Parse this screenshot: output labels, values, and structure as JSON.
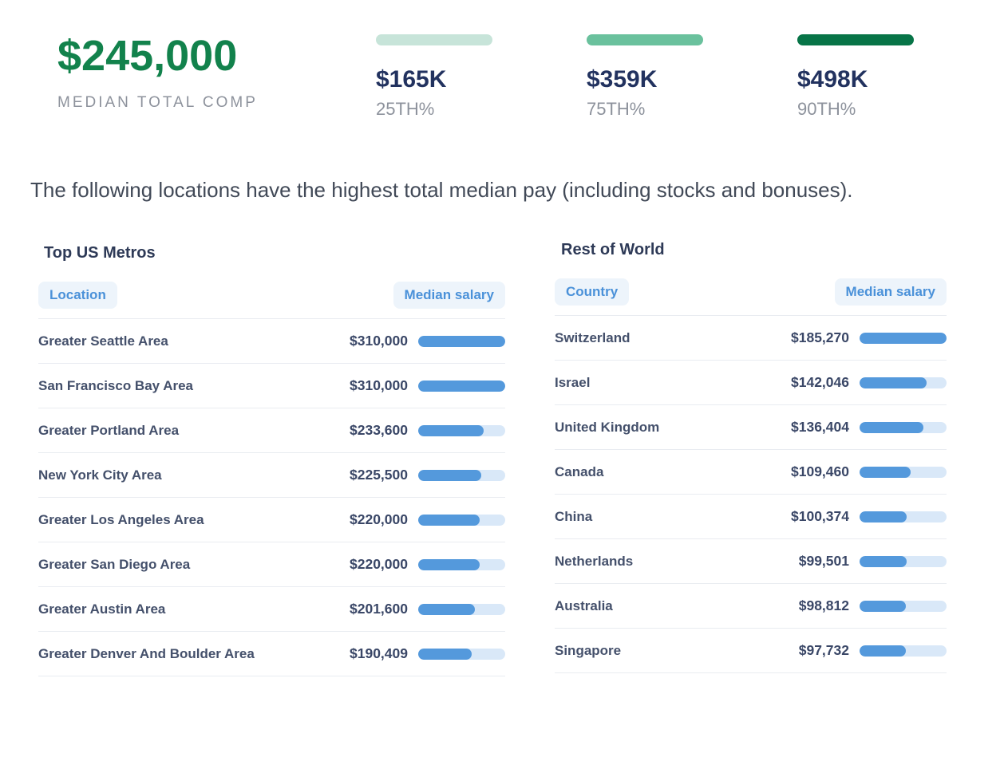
{
  "summary": {
    "median_total_comp": "$245,000",
    "median_total_comp_label": "MEDIAN TOTAL COMP",
    "percentiles": [
      {
        "value": "$165K",
        "label": "25TH%",
        "bar_color": "#c7e4d9"
      },
      {
        "value": "$359K",
        "label": "75TH%",
        "bar_color": "#6ac19d"
      },
      {
        "value": "$498K",
        "label": "90TH%",
        "bar_color": "#077447"
      }
    ]
  },
  "description": "The following locations have the highest total median pay (including stocks and bonuses).",
  "chart_data": [
    {
      "type": "bar",
      "title": "Top US Metros",
      "xlabel": "Location",
      "ylabel": "Median salary",
      "categories": [
        "Greater Seattle Area",
        "San Francisco Bay Area",
        "Greater Portland Area",
        "New York City Area",
        "Greater Los Angeles Area",
        "Greater San Diego Area",
        "Greater Austin Area",
        "Greater Denver And Boulder Area"
      ],
      "values": [
        310000,
        310000,
        233600,
        225500,
        220000,
        220000,
        201600,
        190409
      ],
      "value_labels": [
        "$310,000",
        "$310,000",
        "$233,600",
        "$225,500",
        "$220,000",
        "$220,000",
        "$201,600",
        "$190,409"
      ],
      "xlim": [
        0,
        310000
      ]
    },
    {
      "type": "bar",
      "title": "Rest of World",
      "xlabel": "Country",
      "ylabel": "Median salary",
      "categories": [
        "Switzerland",
        "Israel",
        "United Kingdom",
        "Canada",
        "China",
        "Netherlands",
        "Australia",
        "Singapore"
      ],
      "values": [
        185270,
        142046,
        136404,
        109460,
        100374,
        99501,
        98812,
        97732
      ],
      "value_labels": [
        "$185,270",
        "$142,046",
        "$136,404",
        "$109,460",
        "$100,374",
        "$99,501",
        "$98,812",
        "$97,732"
      ],
      "xlim": [
        0,
        185270
      ]
    }
  ],
  "tables": [
    {
      "title": "Top US Metros",
      "name_header": "Location",
      "value_header": "Median salary",
      "max_amount": 310000,
      "rows": [
        {
          "name": "Greater Seattle Area",
          "value": "$310,000",
          "amount": 310000
        },
        {
          "name": "San Francisco Bay Area",
          "value": "$310,000",
          "amount": 310000
        },
        {
          "name": "Greater Portland Area",
          "value": "$233,600",
          "amount": 233600
        },
        {
          "name": "New York City Area",
          "value": "$225,500",
          "amount": 225500
        },
        {
          "name": "Greater Los Angeles Area",
          "value": "$220,000",
          "amount": 220000
        },
        {
          "name": "Greater San Diego Area",
          "value": "$220,000",
          "amount": 220000
        },
        {
          "name": "Greater Austin Area",
          "value": "$201,600",
          "amount": 201600
        },
        {
          "name": "Greater Denver And Boulder Area",
          "value": "$190,409",
          "amount": 190409
        }
      ]
    },
    {
      "title": "Rest of World",
      "name_header": "Country",
      "value_header": "Median salary",
      "max_amount": 185270,
      "rows": [
        {
          "name": "Switzerland",
          "value": "$185,270",
          "amount": 185270
        },
        {
          "name": "Israel",
          "value": "$142,046",
          "amount": 142046
        },
        {
          "name": "United Kingdom",
          "value": "$136,404",
          "amount": 136404
        },
        {
          "name": "Canada",
          "value": "$109,460",
          "amount": 109460
        },
        {
          "name": "China",
          "value": "$100,374",
          "amount": 100374
        },
        {
          "name": "Netherlands",
          "value": "$99,501",
          "amount": 99501
        },
        {
          "name": "Australia",
          "value": "$98,812",
          "amount": 98812
        },
        {
          "name": "Singapore",
          "value": "$97,732",
          "amount": 97732
        }
      ]
    }
  ],
  "colors": {
    "accent-green": "#12824c",
    "navy": "#22325f",
    "muted-gray": "#8d929c",
    "accent-blue": "#4a91d9",
    "bar-blue": "#5499dc",
    "bar-track": "#d9e8f8",
    "pill-bg": "#edf4fb",
    "text-dark": "#414957",
    "row-text": "#44506b",
    "divider": "#e9ecf1"
  }
}
